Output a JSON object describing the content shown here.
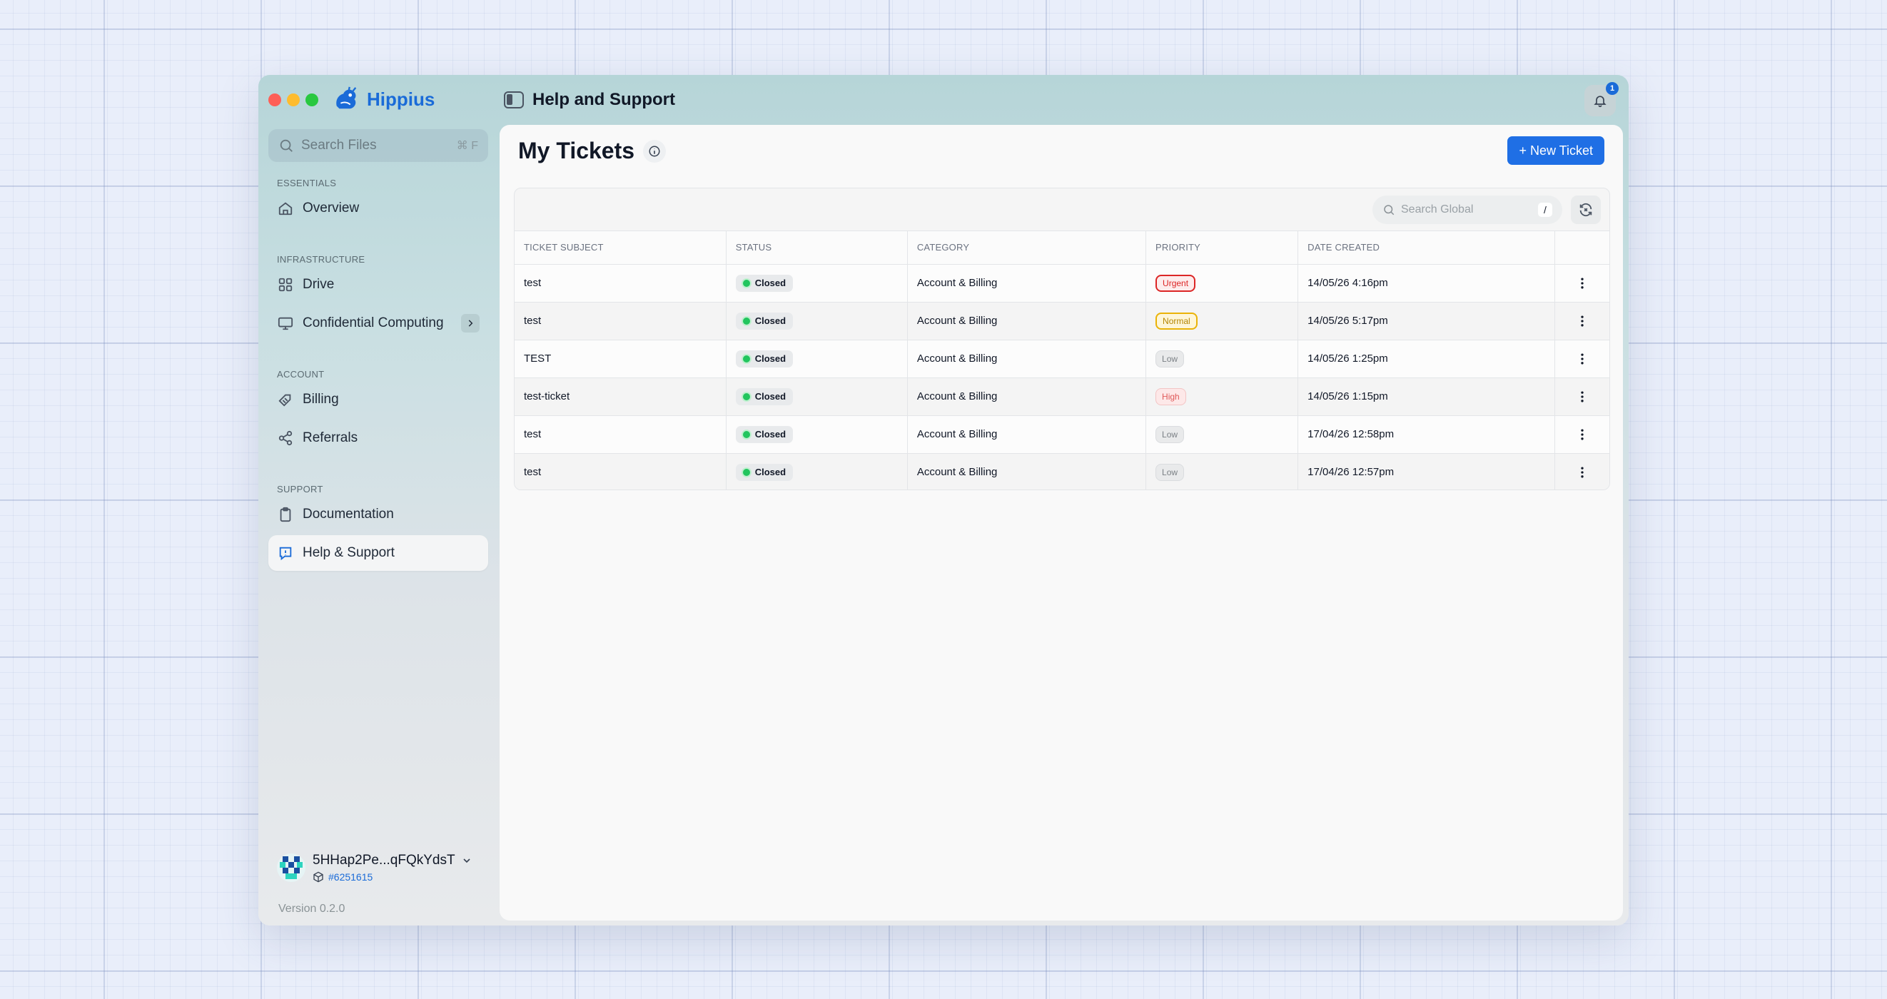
{
  "app": {
    "brand": "Hippius",
    "page_title": "Help and Support",
    "notification_count": "1"
  },
  "sidebar": {
    "search_placeholder": "Search Files",
    "search_shortcut": "⌘ F",
    "sections": {
      "essentials": "ESSENTIALS",
      "infrastructure": "INFRASTRUCTURE",
      "account": "ACCOUNT",
      "support": "SUPPORT"
    },
    "items": {
      "overview": "Overview",
      "drive": "Drive",
      "confidential": "Confidential Computing",
      "billing": "Billing",
      "referrals": "Referrals",
      "documentation": "Documentation",
      "help": "Help & Support"
    },
    "account": {
      "name": "5HHap2Pe...qFQkYdsT",
      "id": "#6251615"
    },
    "version": "Version 0.2.0"
  },
  "main": {
    "title": "My Tickets",
    "new_ticket": "+ New Ticket",
    "search_placeholder": "Search Global",
    "search_shortcut": "/",
    "columns": {
      "subject": "TICKET SUBJECT",
      "status": "STATUS",
      "category": "CATEGORY",
      "priority": "PRIORITY",
      "date": "DATE CREATED"
    },
    "rows": [
      {
        "subject": "test",
        "status": "Closed",
        "category": "Account & Billing",
        "priority": "Urgent",
        "date": "14/05/26 4:16pm"
      },
      {
        "subject": "test",
        "status": "Closed",
        "category": "Account & Billing",
        "priority": "Normal",
        "date": "14/05/26 5:17pm"
      },
      {
        "subject": "TEST",
        "status": "Closed",
        "category": "Account & Billing",
        "priority": "Low",
        "date": "14/05/26 1:25pm"
      },
      {
        "subject": "test-ticket",
        "status": "Closed",
        "category": "Account & Billing",
        "priority": "High",
        "date": "14/05/26 1:15pm"
      },
      {
        "subject": "test",
        "status": "Closed",
        "category": "Account & Billing",
        "priority": "Low",
        "date": "17/04/26 12:58pm"
      },
      {
        "subject": "test",
        "status": "Closed",
        "category": "Account & Billing",
        "priority": "Low",
        "date": "17/04/26 12:57pm"
      }
    ]
  },
  "colors": {
    "accent": "#1f6fe5",
    "status_closed": "#22c55e",
    "priority_urgent": "#dc2626",
    "priority_normal": "#eab308"
  },
  "icons": {
    "search": "search-icon",
    "home": "home-icon",
    "grid": "grid-icon",
    "monitor": "monitor-icon",
    "billing": "billing-icon",
    "share": "share-icon",
    "clipboard": "clipboard-icon",
    "support": "support-icon",
    "bell": "bell-icon",
    "info": "info-icon",
    "refresh": "refresh-icon",
    "more": "more-vertical-icon"
  }
}
